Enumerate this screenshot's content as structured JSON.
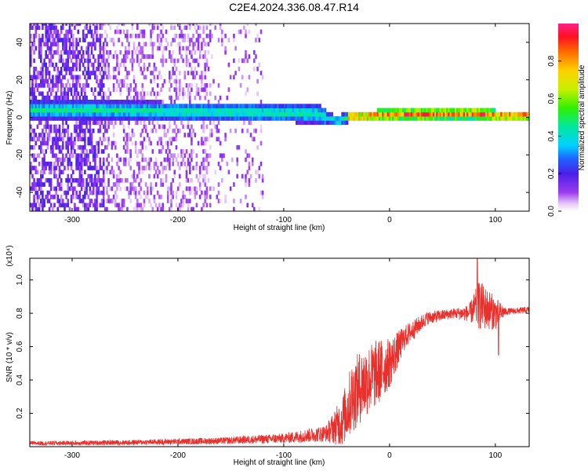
{
  "title": "C2E4.2024.336.08.47.R14",
  "chart_data": [
    {
      "type": "heatmap",
      "title": "C2E4.2024.336.08.47.R14",
      "xlabel": "Height of straight line (km)",
      "ylabel": "Frequency (Hz)",
      "xlim": [
        -340,
        132
      ],
      "ylim": [
        -50,
        50
      ],
      "x_ticks": [
        -300,
        -200,
        -100,
        0,
        100
      ],
      "y_ticks": [
        -40,
        -20,
        0,
        20,
        40
      ],
      "colorbar": {
        "label": "Normalized spectral amplitude",
        "range": [
          0.0,
          1.0
        ],
        "ticks": [
          0.0,
          0.2,
          0.4,
          0.6,
          0.8
        ]
      },
      "ridge_frequency": [
        {
          "x": -280,
          "y": 3
        },
        {
          "x": -200,
          "y": 2
        },
        {
          "x": -120,
          "y": 1.5
        },
        {
          "x": -70,
          "y": 1
        },
        {
          "x": -50,
          "y": -3
        },
        {
          "x": -40,
          "y": -1
        },
        {
          "x": 0,
          "y": 0.5
        },
        {
          "x": 80,
          "y": 1
        },
        {
          "x": 100,
          "y": 0
        },
        {
          "x": 132,
          "y": 0
        }
      ],
      "noise_extent_x": [
        -340,
        -120
      ],
      "grid": false
    },
    {
      "type": "line",
      "xlabel": "Height of straight line (km)",
      "ylabel": "SNR (10 * v/v)",
      "y_multiplier": "(x10⁴)",
      "xlim": [
        -340,
        132
      ],
      "ylim": [
        0.0,
        1.13
      ],
      "x_ticks": [
        -300,
        -200,
        -100,
        0,
        100
      ],
      "y_ticks": [
        0.2,
        0.4,
        0.6,
        0.8,
        1.0
      ],
      "series": [
        {
          "color": "#e8302c",
          "envelope": [
            {
              "x": -340,
              "y": 0.02,
              "amp": 0.012
            },
            {
              "x": -250,
              "y": 0.025,
              "amp": 0.015
            },
            {
              "x": -160,
              "y": 0.035,
              "amp": 0.02
            },
            {
              "x": -100,
              "y": 0.05,
              "amp": 0.03
            },
            {
              "x": -60,
              "y": 0.08,
              "amp": 0.05
            },
            {
              "x": -45,
              "y": 0.15,
              "amp": 0.15
            },
            {
              "x": -35,
              "y": 0.3,
              "amp": 0.22
            },
            {
              "x": -25,
              "y": 0.38,
              "amp": 0.22
            },
            {
              "x": -10,
              "y": 0.45,
              "amp": 0.2
            },
            {
              "x": 0,
              "y": 0.5,
              "amp": 0.15
            },
            {
              "x": 15,
              "y": 0.66,
              "amp": 0.07
            },
            {
              "x": 35,
              "y": 0.77,
              "amp": 0.04
            },
            {
              "x": 60,
              "y": 0.8,
              "amp": 0.03
            },
            {
              "x": 75,
              "y": 0.8,
              "amp": 0.05
            },
            {
              "x": 85,
              "y": 0.85,
              "amp": 0.15
            },
            {
              "x": 100,
              "y": 0.8,
              "amp": 0.1
            },
            {
              "x": 110,
              "y": 0.81,
              "amp": 0.02
            },
            {
              "x": 132,
              "y": 0.82,
              "amp": 0.02
            }
          ],
          "peak": {
            "x": 83,
            "y": 1.13
          },
          "dip": {
            "x": 103,
            "y": 0.55
          }
        }
      ],
      "grid": false
    }
  ]
}
